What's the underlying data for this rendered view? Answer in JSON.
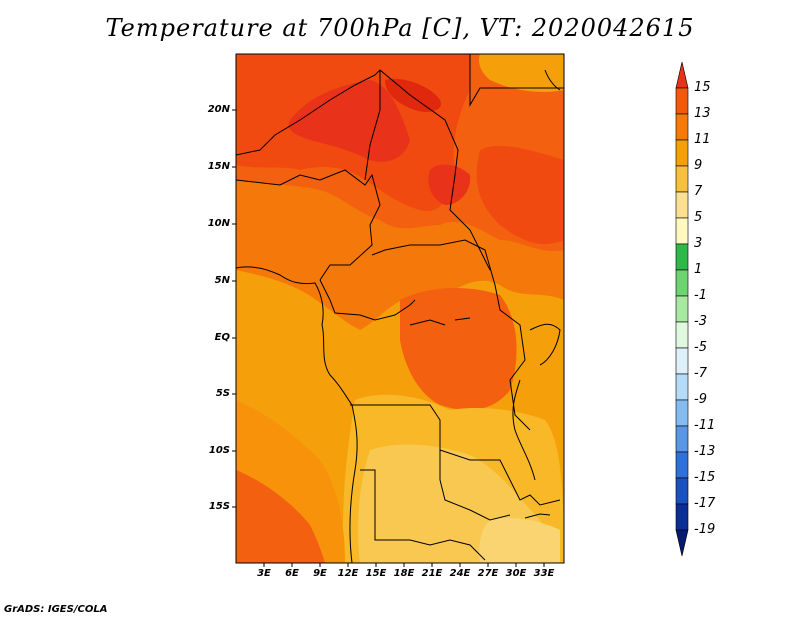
{
  "title": "Temperature at 700hPa [C], VT: 2020042615",
  "credit": "GrADS: IGES/COLA",
  "lat_labels": [
    "20N",
    "15N",
    "10N",
    "5N",
    "EQ",
    "5S",
    "10S",
    "15S"
  ],
  "lon_labels": [
    "3E",
    "6E",
    "9E",
    "12E",
    "15E",
    "18E",
    "21E",
    "24E",
    "27E",
    "30E",
    "33E"
  ],
  "colorbar": {
    "labels": [
      "15",
      "13",
      "11",
      "9",
      "7",
      "5",
      "3",
      "1",
      "-1",
      "-3",
      "-5",
      "-7",
      "-9",
      "-11",
      "-13",
      "-15",
      "-17",
      "-19"
    ],
    "colors": [
      "#e8321a",
      "#f05a0a",
      "#f57a0a",
      "#f5a00a",
      "#f8c040",
      "#fae090",
      "#fff8c0",
      "#2db84a",
      "#6cd470",
      "#a8e8a0",
      "#e0f8e0",
      "#dff0fa",
      "#b4dcf8",
      "#84bcf0",
      "#5a96e6",
      "#3070dc",
      "#1a50c0",
      "#0a2d96",
      "#061a6e"
    ]
  },
  "palette": {
    "t14": "#e8321a",
    "t13": "#f04a10",
    "t12": "#f26010",
    "t11": "#f5780a",
    "t10": "#f7920a",
    "t9": "#f5a00a",
    "t8": "#f8b828",
    "t7": "#f9c850",
    "t6": "#fad470"
  }
}
